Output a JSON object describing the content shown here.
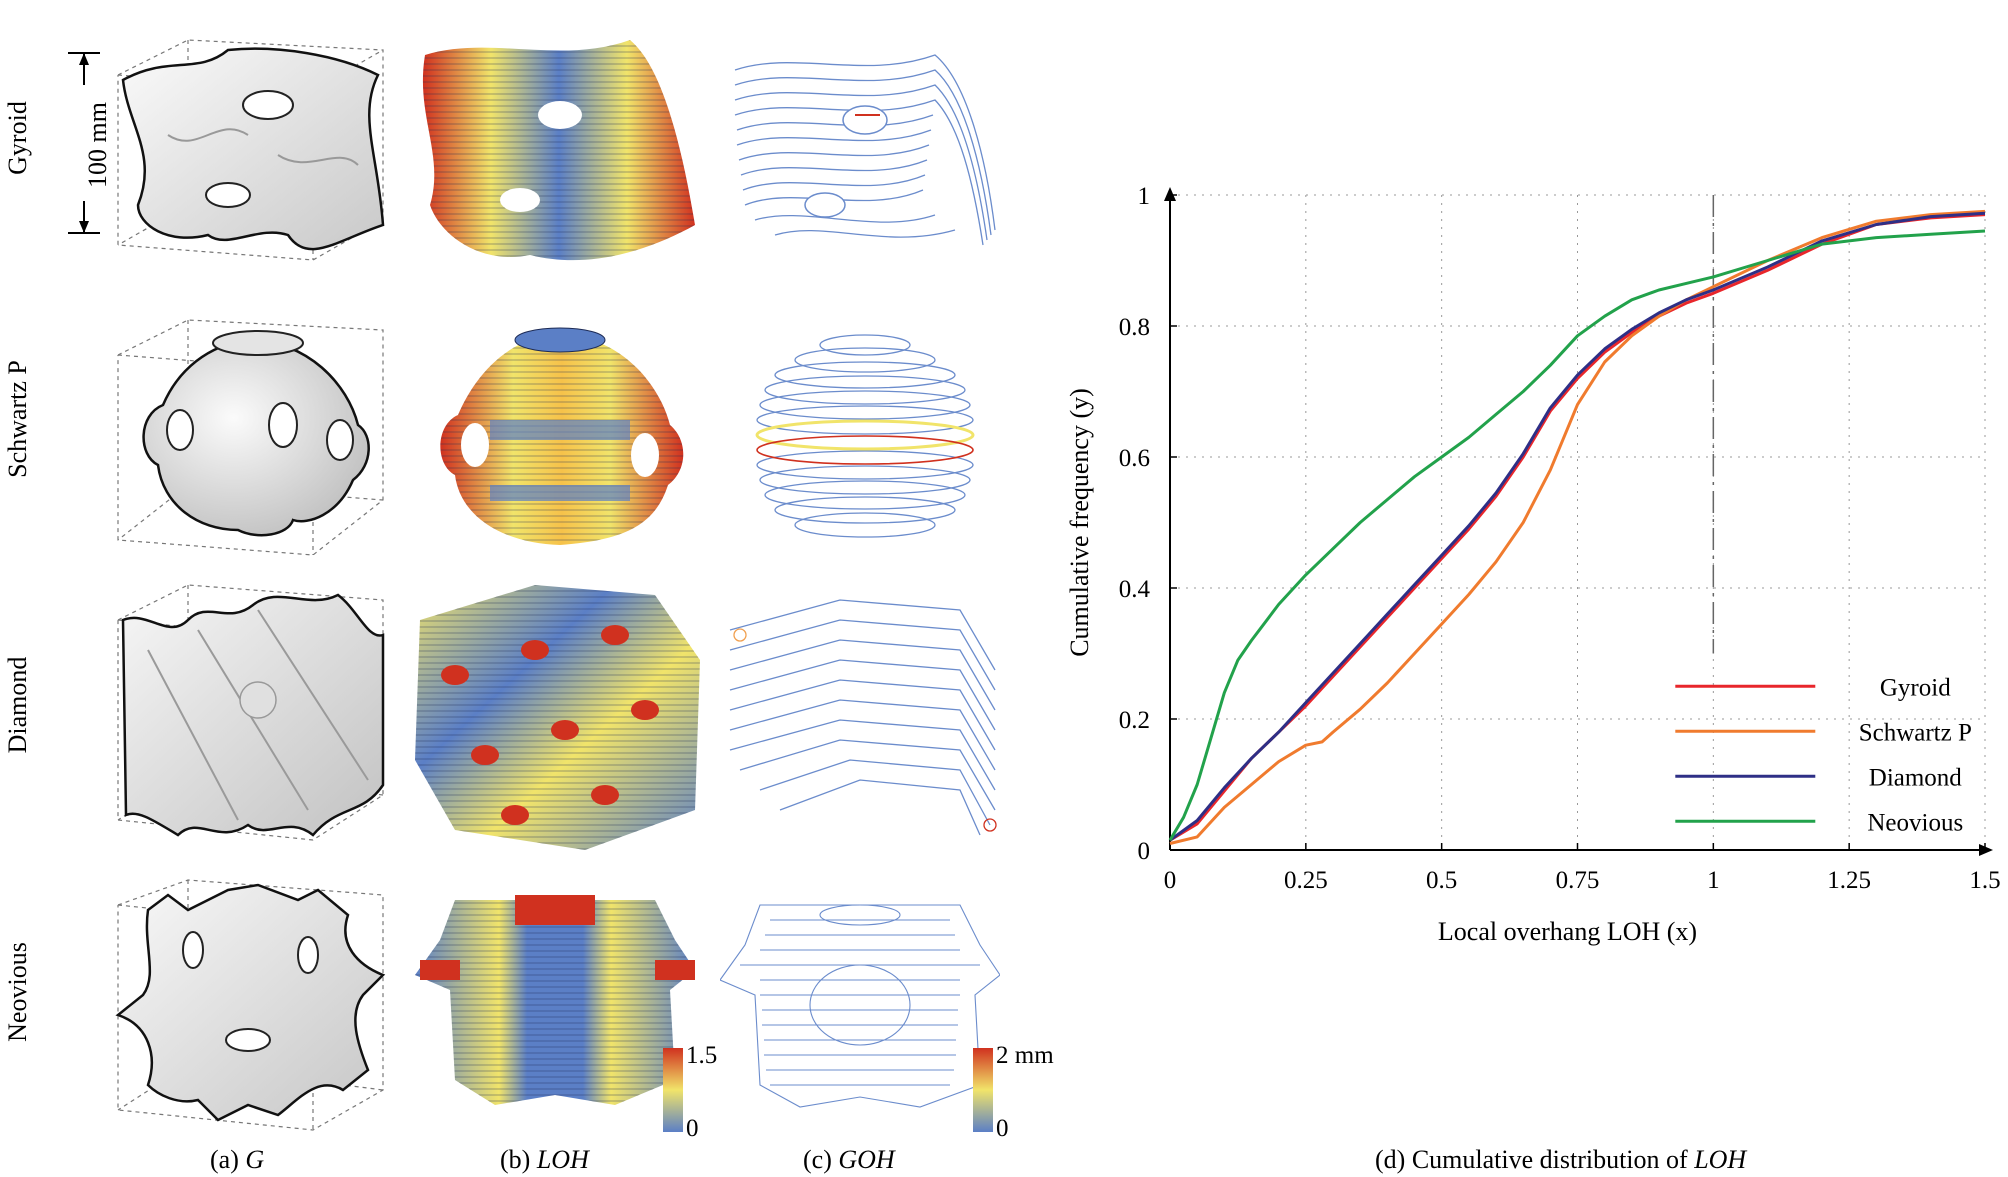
{
  "rows": [
    {
      "label": "Gyroid"
    },
    {
      "label": "Schwartz P"
    },
    {
      "label": "Diamond"
    },
    {
      "label": "Neovious"
    }
  ],
  "dimension": {
    "label": "100 mm"
  },
  "captions": {
    "a": {
      "prefix": "(a) ",
      "symbol": "G"
    },
    "b": {
      "prefix": "(b) ",
      "symbol": "LOH"
    },
    "c": {
      "prefix": "(c) ",
      "symbol": "GOH"
    },
    "d": {
      "prefix": "(d) Cumulative distribution of ",
      "symbol": "LOH"
    }
  },
  "colorbars": {
    "loh": {
      "max": "1.5",
      "min": "0"
    },
    "goh": {
      "max": "2 mm",
      "min": "0"
    }
  },
  "colors": {
    "gyroid": "#e8262b",
    "schwartz": "#f07b2e",
    "diamond": "#2e2f86",
    "neovious": "#22a24b",
    "scale_low": "#5b7fc6",
    "scale_mid": "#f1e46a",
    "scale_high": "#d0311f"
  },
  "chart_data": {
    "type": "line",
    "title": "(d) Cumulative distribution of LOH",
    "xlabel": "Local overhang LOH (x)",
    "ylabel": "Cumulative frequency (y)",
    "xlim": [
      0,
      1.5
    ],
    "ylim": [
      0,
      1
    ],
    "xticks": [
      "0",
      "0.25",
      "0.5",
      "0.75",
      "1",
      "1.25",
      "1.5"
    ],
    "yticks": [
      "0",
      "0.2",
      "0.4",
      "0.6",
      "0.8",
      "1"
    ],
    "grid": true,
    "reference_line_x": 1,
    "legend_position": "bottom-right",
    "series": [
      {
        "name": "Gyroid",
        "color": "#e8262b",
        "x": [
          0,
          0.05,
          0.1,
          0.15,
          0.2,
          0.25,
          0.3,
          0.35,
          0.4,
          0.45,
          0.5,
          0.55,
          0.6,
          0.65,
          0.7,
          0.75,
          0.8,
          0.85,
          0.9,
          0.95,
          1.0,
          1.1,
          1.2,
          1.3,
          1.4,
          1.5
        ],
        "y": [
          0.015,
          0.04,
          0.09,
          0.14,
          0.18,
          0.22,
          0.265,
          0.31,
          0.355,
          0.4,
          0.445,
          0.49,
          0.54,
          0.6,
          0.67,
          0.72,
          0.76,
          0.79,
          0.815,
          0.835,
          0.85,
          0.885,
          0.925,
          0.955,
          0.965,
          0.97
        ]
      },
      {
        "name": "Schwartz P",
        "color": "#f07b2e",
        "x": [
          0,
          0.05,
          0.1,
          0.15,
          0.2,
          0.25,
          0.28,
          0.3,
          0.35,
          0.4,
          0.45,
          0.5,
          0.55,
          0.6,
          0.65,
          0.7,
          0.75,
          0.8,
          0.85,
          0.9,
          0.95,
          1.0,
          1.1,
          1.2,
          1.3,
          1.4,
          1.5
        ],
        "y": [
          0.01,
          0.02,
          0.065,
          0.1,
          0.135,
          0.16,
          0.165,
          0.18,
          0.215,
          0.255,
          0.3,
          0.345,
          0.39,
          0.44,
          0.5,
          0.58,
          0.68,
          0.745,
          0.785,
          0.815,
          0.84,
          0.86,
          0.9,
          0.935,
          0.96,
          0.97,
          0.975
        ]
      },
      {
        "name": "Diamond",
        "color": "#2e2f86",
        "x": [
          0,
          0.05,
          0.1,
          0.15,
          0.2,
          0.25,
          0.3,
          0.35,
          0.4,
          0.45,
          0.5,
          0.55,
          0.6,
          0.65,
          0.7,
          0.75,
          0.8,
          0.85,
          0.9,
          0.95,
          1.0,
          1.1,
          1.2,
          1.3,
          1.4,
          1.5
        ],
        "y": [
          0.015,
          0.045,
          0.095,
          0.14,
          0.18,
          0.225,
          0.27,
          0.315,
          0.36,
          0.405,
          0.45,
          0.495,
          0.545,
          0.605,
          0.675,
          0.725,
          0.765,
          0.795,
          0.82,
          0.84,
          0.855,
          0.89,
          0.93,
          0.955,
          0.967,
          0.972
        ]
      },
      {
        "name": "Neovious",
        "color": "#22a24b",
        "x": [
          0,
          0.025,
          0.05,
          0.075,
          0.1,
          0.125,
          0.15,
          0.2,
          0.25,
          0.3,
          0.35,
          0.4,
          0.45,
          0.5,
          0.55,
          0.6,
          0.65,
          0.7,
          0.75,
          0.8,
          0.85,
          0.9,
          0.95,
          1.0,
          1.1,
          1.2,
          1.3,
          1.4,
          1.5
        ],
        "y": [
          0.015,
          0.05,
          0.1,
          0.17,
          0.24,
          0.29,
          0.32,
          0.375,
          0.42,
          0.46,
          0.5,
          0.535,
          0.57,
          0.6,
          0.63,
          0.665,
          0.7,
          0.74,
          0.785,
          0.815,
          0.84,
          0.855,
          0.865,
          0.875,
          0.9,
          0.925,
          0.935,
          0.94,
          0.945
        ]
      }
    ]
  }
}
